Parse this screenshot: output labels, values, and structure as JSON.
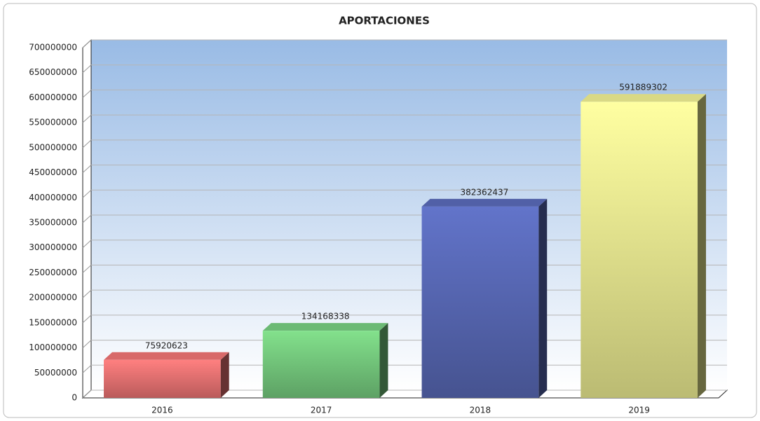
{
  "chart_data": {
    "type": "bar3d",
    "title": "APORTACIONES",
    "categories": [
      "2016",
      "2017",
      "2018",
      "2019"
    ],
    "values": [
      75920623,
      134168338,
      382362437,
      591889302
    ],
    "colors": [
      "#e36f6f",
      "#72c47a",
      "#5565b0",
      "#e4e48c"
    ],
    "ylim": [
      0,
      700000000
    ],
    "yticks": [
      0,
      50000000,
      100000000,
      150000000,
      200000000,
      250000000,
      300000000,
      350000000,
      400000000,
      450000000,
      500000000,
      550000000,
      600000000,
      650000000,
      700000000
    ],
    "grid": true
  }
}
